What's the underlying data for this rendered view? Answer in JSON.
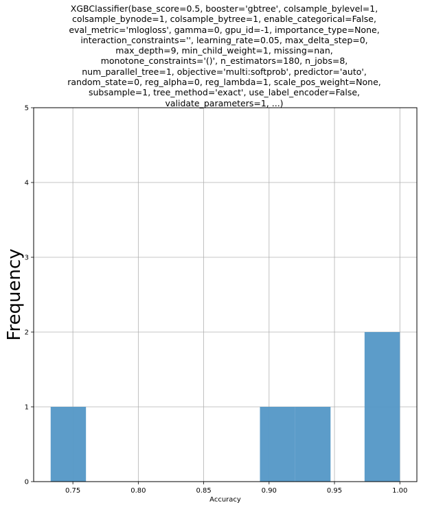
{
  "chart_data": {
    "type": "histogram",
    "title_lines": [
      "XGBClassifier(base_score=0.5, booster='gbtree', colsample_bylevel=1,",
      "colsample_bynode=1, colsample_bytree=1, enable_categorical=False,",
      "eval_metric='mlogloss', gamma=0, gpu_id=-1, importance_type=None,",
      "interaction_constraints='', learning_rate=0.05, max_delta_step=0,",
      "max_depth=9, min_child_weight=1, missing=nan,",
      "monotone_constraints='()', n_estimators=180, n_jobs=8,",
      "num_parallel_tree=1, objective='multi:softprob', predictor='auto',",
      "random_state=0, reg_alpha=0, reg_lambda=1, scale_pos_weight=None,",
      "subsample=1, tree_method='exact', use_label_encoder=False,",
      "validate_parameters=1, ...)"
    ],
    "xlabel": "Accuracy",
    "ylabel": "Frequency",
    "xlim": [
      0.72,
      1.013
    ],
    "ylim": [
      0,
      5
    ],
    "x_ticks": [
      "0.75",
      "0.80",
      "0.85",
      "0.90",
      "0.95",
      "1.00"
    ],
    "y_ticks": [
      "0",
      "1",
      "2",
      "3",
      "4",
      "5"
    ],
    "grid": true,
    "bar_color": "#5799c7",
    "bins": [
      {
        "start": 0.733,
        "end": 0.76,
        "count": 1
      },
      {
        "start": 0.76,
        "end": 0.787,
        "count": 0
      },
      {
        "start": 0.787,
        "end": 0.813,
        "count": 0
      },
      {
        "start": 0.813,
        "end": 0.84,
        "count": 0
      },
      {
        "start": 0.84,
        "end": 0.867,
        "count": 0
      },
      {
        "start": 0.867,
        "end": 0.893,
        "count": 0
      },
      {
        "start": 0.893,
        "end": 0.92,
        "count": 1
      },
      {
        "start": 0.92,
        "end": 0.947,
        "count": 1
      },
      {
        "start": 0.947,
        "end": 0.973,
        "count": 0
      },
      {
        "start": 0.973,
        "end": 1.0,
        "count": 2
      }
    ]
  }
}
